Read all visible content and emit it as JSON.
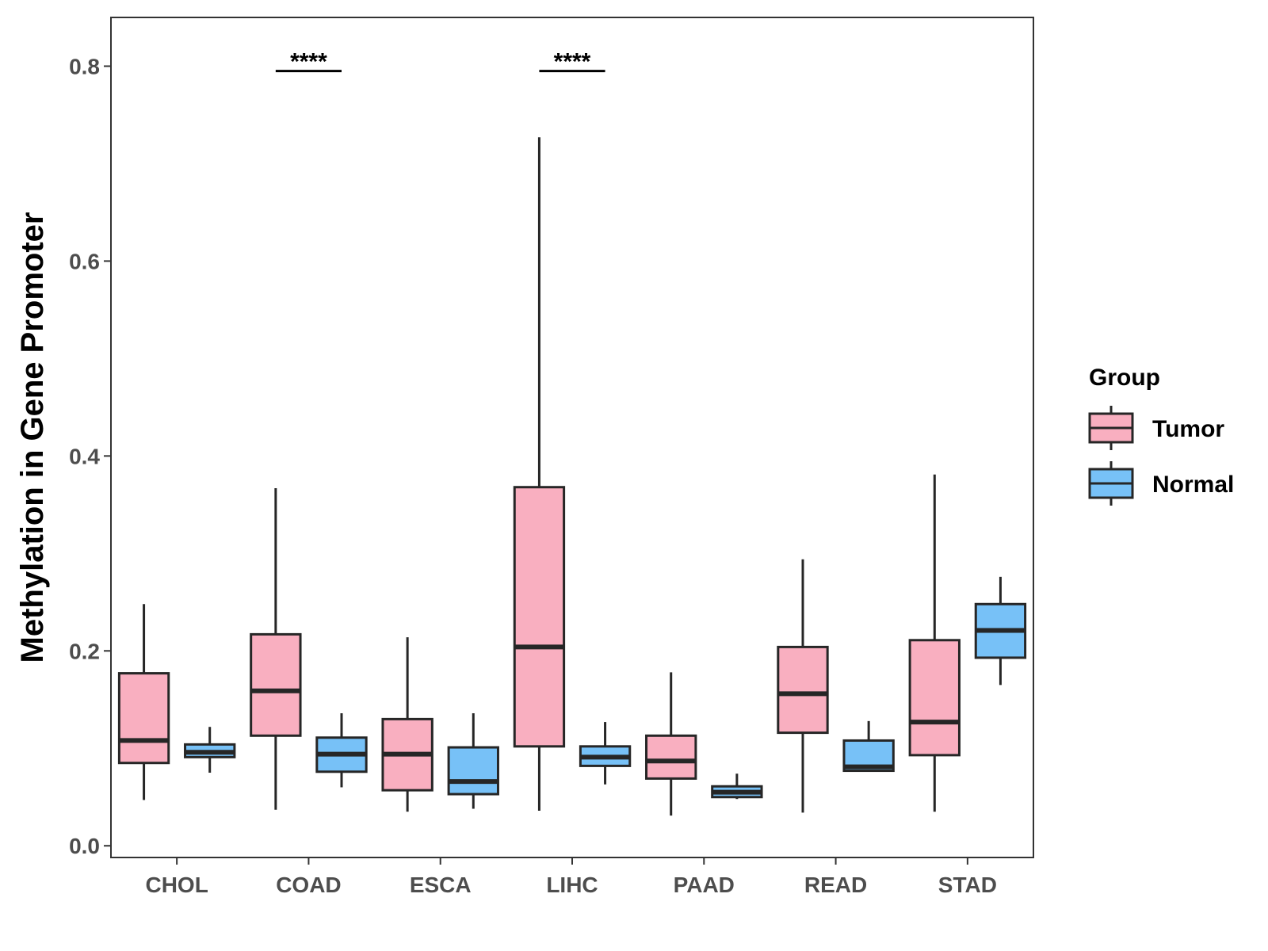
{
  "chart_data": {
    "type": "boxplot",
    "title": "",
    "xlabel": "",
    "ylabel": "Methylation in Gene Promoter",
    "ylim": [
      -0.012,
      0.85
    ],
    "yticks": [
      "0.0",
      "0.2",
      "0.4",
      "0.6",
      "0.8"
    ],
    "categories": [
      "CHOL",
      "COAD",
      "ESCA",
      "LIHC",
      "PAAD",
      "READ",
      "STAD"
    ],
    "legend": {
      "title": "Group",
      "position": "right",
      "entries": [
        {
          "name": "Tumor",
          "color": "#f9afc0"
        },
        {
          "name": "Normal",
          "color": "#77c1f7"
        }
      ]
    },
    "series": [
      {
        "name": "Tumor",
        "color": "#f9afc0",
        "boxes": [
          {
            "category": "CHOL",
            "min": 0.047,
            "q1": 0.085,
            "median": 0.108,
            "q3": 0.177,
            "max": 0.248
          },
          {
            "category": "COAD",
            "min": 0.037,
            "q1": 0.113,
            "median": 0.159,
            "q3": 0.217,
            "max": 0.367
          },
          {
            "category": "ESCA",
            "min": 0.035,
            "q1": 0.057,
            "median": 0.094,
            "q3": 0.13,
            "max": 0.214
          },
          {
            "category": "LIHC",
            "min": 0.036,
            "q1": 0.102,
            "median": 0.204,
            "q3": 0.368,
            "max": 0.727
          },
          {
            "category": "PAAD",
            "min": 0.031,
            "q1": 0.069,
            "median": 0.087,
            "q3": 0.113,
            "max": 0.178
          },
          {
            "category": "READ",
            "min": 0.034,
            "q1": 0.116,
            "median": 0.156,
            "q3": 0.204,
            "max": 0.294
          },
          {
            "category": "STAD",
            "min": 0.035,
            "q1": 0.093,
            "median": 0.127,
            "q3": 0.211,
            "max": 0.381
          }
        ]
      },
      {
        "name": "Normal",
        "color": "#77c1f7",
        "boxes": [
          {
            "category": "CHOL",
            "min": 0.075,
            "q1": 0.091,
            "median": 0.096,
            "q3": 0.104,
            "max": 0.122
          },
          {
            "category": "COAD",
            "min": 0.06,
            "q1": 0.076,
            "median": 0.094,
            "q3": 0.111,
            "max": 0.136
          },
          {
            "category": "ESCA",
            "min": 0.038,
            "q1": 0.053,
            "median": 0.066,
            "q3": 0.101,
            "max": 0.136
          },
          {
            "category": "LIHC",
            "min": 0.063,
            "q1": 0.082,
            "median": 0.091,
            "q3": 0.102,
            "max": 0.127
          },
          {
            "category": "PAAD",
            "min": 0.048,
            "q1": 0.05,
            "median": 0.055,
            "q3": 0.061,
            "max": 0.074
          },
          {
            "category": "READ",
            "min": 0.077,
            "q1": 0.077,
            "median": 0.081,
            "q3": 0.108,
            "max": 0.128
          },
          {
            "category": "STAD",
            "min": 0.165,
            "q1": 0.193,
            "median": 0.221,
            "q3": 0.248,
            "max": 0.276
          }
        ]
      }
    ],
    "annotations": [
      {
        "category": "COAD",
        "label": "****",
        "y": 0.795
      },
      {
        "category": "LIHC",
        "label": "****",
        "y": 0.795
      }
    ]
  }
}
